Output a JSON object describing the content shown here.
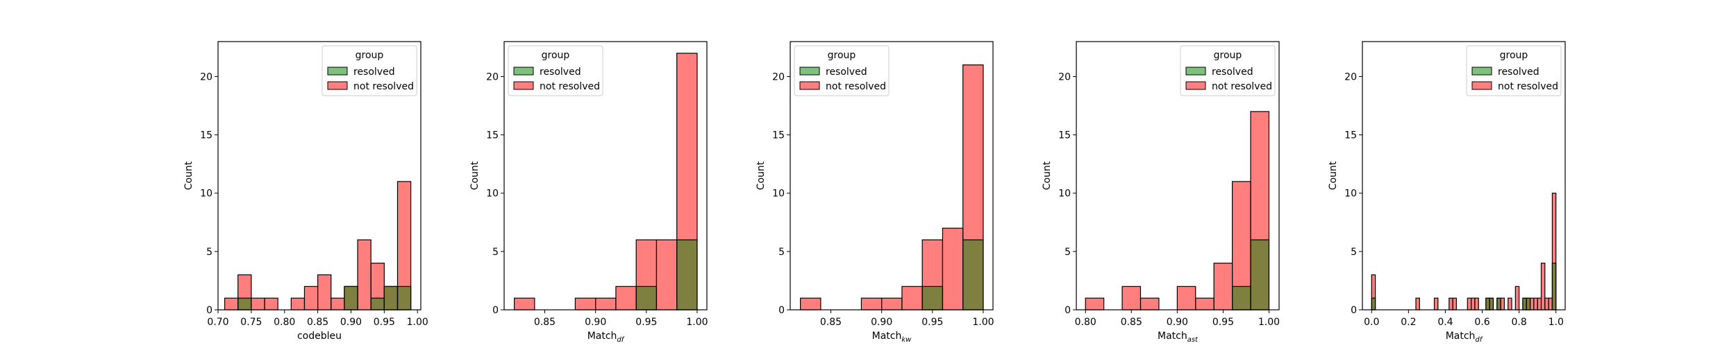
{
  "colors": {
    "resolved": "#008000",
    "not_resolved": "#ff0000",
    "overlap": "#7a7a35"
  },
  "chart_data": [
    {
      "type": "bar",
      "xlabel": "codebleu",
      "ylabel": "Count",
      "xlim": [
        0.7,
        1.005
      ],
      "ylim": [
        0,
        23
      ],
      "xticks": [
        "0.70",
        "0.75",
        "0.80",
        "0.85",
        "0.90",
        "0.95",
        "1.00"
      ],
      "yticks": [
        "0",
        "5",
        "10",
        "15",
        "20"
      ],
      "legend": {
        "title": "group",
        "position": "top-right",
        "entries": [
          "resolved",
          "not resolved"
        ]
      },
      "bin_edges": [
        0.71,
        0.73,
        0.75,
        0.77,
        0.79,
        0.81,
        0.83,
        0.85,
        0.87,
        0.89,
        0.91,
        0.93,
        0.95,
        0.97,
        0.99
      ],
      "series": [
        {
          "name": "not resolved",
          "values": [
            1,
            3,
            1,
            1,
            0,
            1,
            2,
            3,
            1,
            2,
            6,
            4,
            2,
            11
          ]
        },
        {
          "name": "resolved",
          "values": [
            0,
            1,
            0,
            0,
            0,
            0,
            0,
            0,
            0,
            2,
            0,
            1,
            2,
            2
          ]
        }
      ]
    },
    {
      "type": "bar",
      "xlabel": "Match",
      "xlabel_sub": "df",
      "ylabel": "Count",
      "xlim": [
        0.81,
        1.0096
      ],
      "ylim": [
        0,
        23
      ],
      "xticks": [
        "0.85",
        "0.90",
        "0.95",
        "1.00"
      ],
      "yticks": [
        "0",
        "5",
        "10",
        "15",
        "20"
      ],
      "legend": {
        "title": "group",
        "position": "top-left",
        "entries": [
          "resolved",
          "not resolved"
        ]
      },
      "bin_edges": [
        0.82,
        0.84,
        0.86,
        0.88,
        0.9,
        0.92,
        0.94,
        0.96,
        0.98,
        1.0
      ],
      "series": [
        {
          "name": "not resolved",
          "values": [
            1,
            0,
            0,
            1,
            1,
            2,
            6,
            6,
            22
          ]
        },
        {
          "name": "resolved",
          "values": [
            0,
            0,
            0,
            0,
            0,
            0,
            2,
            0,
            6
          ]
        }
      ]
    },
    {
      "type": "bar",
      "xlabel": "Match",
      "xlabel_sub": "kw",
      "ylabel": "Count",
      "xlim": [
        0.81,
        1.0096
      ],
      "ylim": [
        0,
        23
      ],
      "xticks": [
        "0.85",
        "0.90",
        "0.95",
        "1.00"
      ],
      "yticks": [
        "0",
        "5",
        "10",
        "15",
        "20"
      ],
      "legend": {
        "title": "group",
        "position": "top-left",
        "entries": [
          "resolved",
          "not resolved"
        ]
      },
      "bin_edges": [
        0.82,
        0.84,
        0.86,
        0.88,
        0.9,
        0.92,
        0.94,
        0.96,
        0.98,
        1.0
      ],
      "series": [
        {
          "name": "not resolved",
          "values": [
            1,
            0,
            0,
            1,
            1,
            2,
            6,
            7,
            21
          ]
        },
        {
          "name": "resolved",
          "values": [
            0,
            0,
            0,
            0,
            0,
            0,
            2,
            0,
            6
          ]
        }
      ]
    },
    {
      "type": "bar",
      "xlabel": "Match",
      "xlabel_sub": "ast",
      "ylabel": "Count",
      "xlim": [
        0.79,
        1.011
      ],
      "ylim": [
        0,
        23
      ],
      "xticks": [
        "0.80",
        "0.85",
        "0.90",
        "0.95",
        "1.00"
      ],
      "yticks": [
        "0",
        "5",
        "10",
        "15",
        "20"
      ],
      "legend": {
        "title": "group",
        "position": "top-right",
        "entries": [
          "resolved",
          "not resolved"
        ]
      },
      "bin_edges": [
        0.8,
        0.82,
        0.84,
        0.86,
        0.88,
        0.9,
        0.92,
        0.94,
        0.96,
        0.98,
        1.0
      ],
      "series": [
        {
          "name": "not resolved",
          "values": [
            1,
            0,
            2,
            1,
            0,
            2,
            1,
            4,
            11,
            17
          ]
        },
        {
          "name": "resolved",
          "values": [
            0,
            0,
            0,
            0,
            0,
            0,
            0,
            0,
            2,
            6
          ]
        }
      ]
    },
    {
      "type": "bar",
      "xlabel": "Match",
      "xlabel_sub": "df",
      "ylabel": "Count",
      "xlim": [
        -0.05,
        1.05
      ],
      "ylim": [
        0,
        23
      ],
      "xticks": [
        "0.0",
        "0.2",
        "0.4",
        "0.6",
        "0.8",
        "1.0"
      ],
      "yticks": [
        "0",
        "5",
        "10",
        "15",
        "20"
      ],
      "legend": {
        "title": "group",
        "position": "top-right",
        "entries": [
          "resolved",
          "not resolved"
        ]
      },
      "bin_width": 0.02,
      "bins": [
        {
          "x": 0.0,
          "not_resolved": 3,
          "resolved": 1
        },
        {
          "x": 0.24,
          "not_resolved": 1,
          "resolved": 0
        },
        {
          "x": 0.34,
          "not_resolved": 1,
          "resolved": 0
        },
        {
          "x": 0.42,
          "not_resolved": 1,
          "resolved": 0
        },
        {
          "x": 0.44,
          "not_resolved": 1,
          "resolved": 0
        },
        {
          "x": 0.52,
          "not_resolved": 1,
          "resolved": 0
        },
        {
          "x": 0.54,
          "not_resolved": 1,
          "resolved": 0
        },
        {
          "x": 0.56,
          "not_resolved": 1,
          "resolved": 0
        },
        {
          "x": 0.62,
          "not_resolved": 1,
          "resolved": 1
        },
        {
          "x": 0.64,
          "not_resolved": 1,
          "resolved": 1
        },
        {
          "x": 0.68,
          "not_resolved": 1,
          "resolved": 1
        },
        {
          "x": 0.7,
          "not_resolved": 1,
          "resolved": 0
        },
        {
          "x": 0.74,
          "not_resolved": 1,
          "resolved": 0
        },
        {
          "x": 0.78,
          "not_resolved": 2,
          "resolved": 0
        },
        {
          "x": 0.82,
          "not_resolved": 1,
          "resolved": 1
        },
        {
          "x": 0.84,
          "not_resolved": 1,
          "resolved": 1
        },
        {
          "x": 0.86,
          "not_resolved": 1,
          "resolved": 0
        },
        {
          "x": 0.88,
          "not_resolved": 1,
          "resolved": 0
        },
        {
          "x": 0.9,
          "not_resolved": 1,
          "resolved": 0
        },
        {
          "x": 0.92,
          "not_resolved": 4,
          "resolved": 0
        },
        {
          "x": 0.94,
          "not_resolved": 1,
          "resolved": 0
        },
        {
          "x": 0.96,
          "not_resolved": 1,
          "resolved": 0
        },
        {
          "x": 0.98,
          "not_resolved": 10,
          "resolved": 4
        }
      ]
    }
  ]
}
